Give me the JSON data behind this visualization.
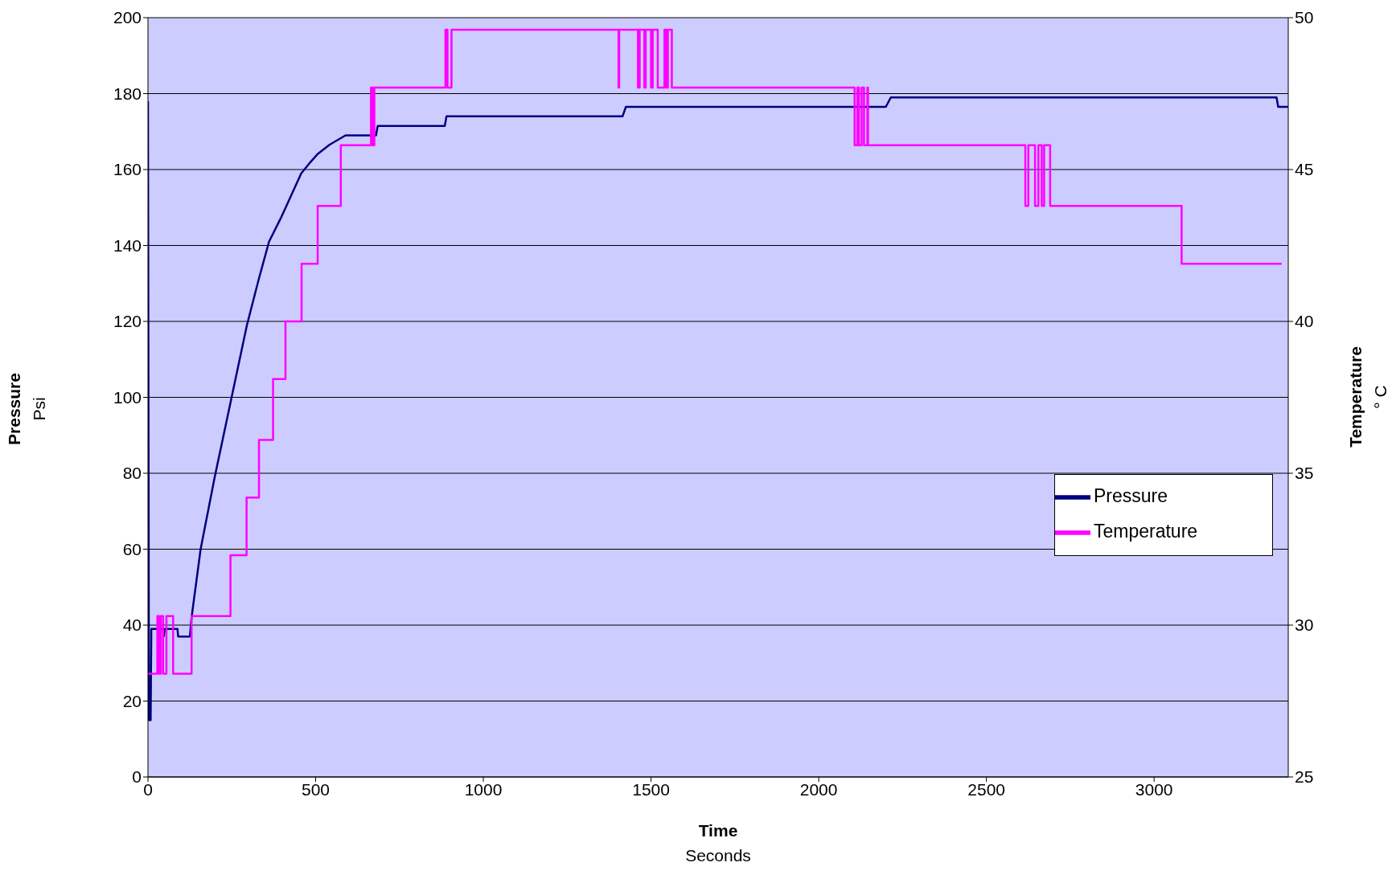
{
  "chart_data": {
    "type": "line",
    "xlabel": "Time\nSeconds",
    "ylabel": "Pressure\nPsi",
    "y2label": "Temperature\n° C",
    "xlim": [
      0,
      3400
    ],
    "xticks": [
      0,
      500,
      1000,
      1500,
      2000,
      2500,
      3000
    ],
    "ylim": [
      0,
      200
    ],
    "yticks": [
      0,
      20,
      40,
      60,
      80,
      100,
      120,
      140,
      160,
      180,
      200
    ],
    "y2lim": [
      25,
      50
    ],
    "y2ticks": [
      25,
      30,
      35,
      40,
      45,
      50
    ],
    "grid": "y",
    "legend": "right",
    "marker": "none",
    "line_style": "solid",
    "series": [
      {
        "name": "Pressure",
        "color": "#000080",
        "x": [
          0,
          3,
          8,
          10,
          45,
          47,
          50,
          88,
          90,
          125,
          130,
          157,
          199,
          247,
          295,
          330,
          361,
          395,
          421,
          457,
          480,
          505,
          541,
          589,
          680,
          685,
          885,
          890,
          1415,
          1425,
          2200,
          2215,
          3365,
          3370,
          3400
        ],
        "values": [
          178,
          15,
          15,
          39,
          39,
          37,
          39,
          39,
          37,
          37,
          42,
          60,
          79,
          99,
          119,
          131,
          141,
          147,
          152,
          159,
          161.5,
          164,
          166.5,
          169,
          169,
          171.5,
          171.5,
          174,
          174,
          176.5,
          176.5,
          179,
          179,
          176.5,
          176.5
        ]
      },
      {
        "name": "Temperature",
        "color": "#ff00ff",
        "axis": "y2",
        "x": [
          0,
          28,
          28,
          33,
          33,
          38,
          38,
          45,
          45,
          55,
          55,
          75,
          75,
          130,
          130,
          246,
          246,
          294,
          294,
          331,
          331,
          373,
          373,
          410,
          410,
          458,
          458,
          506,
          506,
          575,
          575,
          665,
          665,
          670,
          670,
          675,
          675,
          887,
          887,
          893,
          893,
          905,
          905,
          1403,
          1403,
          1405,
          1405,
          1461,
          1461,
          1466,
          1466,
          1480,
          1480,
          1484,
          1484,
          1500,
          1500,
          1505,
          1505,
          1520,
          1520,
          1540,
          1540,
          1545,
          1545,
          1550,
          1550,
          1562,
          1562,
          2107,
          2107,
          2115,
          2115,
          2120,
          2120,
          2128,
          2128,
          2135,
          2135,
          2145,
          2145,
          2147,
          2147,
          2616,
          2616,
          2625,
          2625,
          2645,
          2645,
          2655,
          2655,
          2665,
          2665,
          2672,
          2672,
          2690,
          2690,
          3082,
          3082,
          3380
        ],
        "values": [
          28.4,
          28.4,
          30.3,
          30.3,
          28.4,
          28.4,
          30.3,
          30.3,
          28.4,
          28.4,
          30.3,
          30.3,
          28.4,
          28.4,
          30.3,
          30.3,
          32.3,
          32.3,
          34.2,
          34.2,
          36.1,
          36.1,
          38.1,
          38.1,
          40.0,
          40.0,
          41.9,
          41.9,
          43.8,
          43.8,
          45.8,
          45.8,
          47.7,
          47.7,
          45.8,
          45.8,
          47.7,
          47.7,
          49.6,
          49.6,
          47.7,
          47.7,
          49.6,
          49.6,
          47.7,
          47.7,
          49.6,
          49.6,
          47.7,
          47.7,
          49.6,
          49.6,
          47.7,
          47.7,
          49.6,
          49.6,
          47.7,
          47.7,
          49.6,
          49.6,
          47.7,
          47.7,
          49.6,
          49.6,
          47.7,
          47.7,
          49.6,
          49.6,
          47.7,
          47.7,
          45.8,
          45.8,
          47.7,
          47.7,
          45.8,
          45.8,
          47.7,
          47.7,
          45.8,
          45.8,
          47.7,
          47.7,
          45.8,
          45.8,
          43.8,
          43.8,
          45.8,
          45.8,
          43.8,
          43.8,
          45.8,
          45.8,
          43.8,
          43.8,
          45.8,
          45.8,
          43.8,
          43.8,
          41.9,
          41.9
        ]
      }
    ]
  }
}
